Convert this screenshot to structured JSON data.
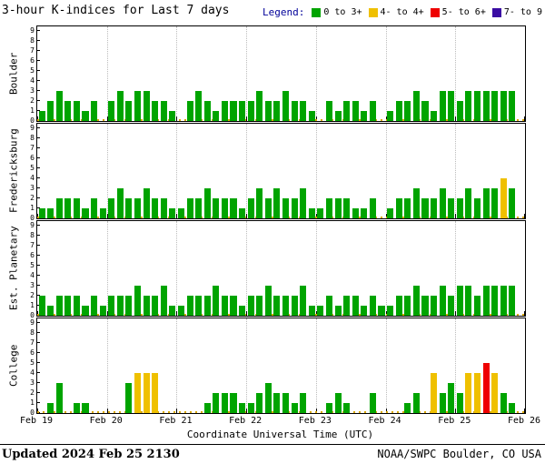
{
  "title": "3-hour K-indices for Last 7 days",
  "legend": {
    "label": "Legend:",
    "items": [
      {
        "label": "0 to 3+",
        "color": "#00a400"
      },
      {
        "label": "4- to 4+",
        "color": "#efc000"
      },
      {
        "label": "5- to 6+",
        "color": "#ee0000"
      },
      {
        "label": "7- to 9",
        "color": "#3a0ca3"
      }
    ]
  },
  "xlabel": "Coordinate Universal Time (UTC)",
  "footer": {
    "updated": "Updated 2024 Feb 25 2130",
    "source": "NOAA/SWPC Boulder, CO USA"
  },
  "chart_data": {
    "type": "bar",
    "x_tick_labels": [
      "Feb 19",
      "Feb 20",
      "Feb 21",
      "Feb 22",
      "Feb 23",
      "Feb 24",
      "Feb 25",
      "Feb 26"
    ],
    "slots_per_day": 8,
    "ylim": [
      0,
      9
    ],
    "y_ticks": [
      0,
      1,
      2,
      3,
      4,
      5,
      6,
      7,
      8,
      9
    ],
    "colors": {
      "green": "#00a400",
      "yellow": "#efc000",
      "red": "#ee0000",
      "purple": "#3a0ca3"
    },
    "color_map": {
      "0-3": "green",
      "4": "yellow",
      "5-6": "red",
      "7-9": "purple"
    },
    "panels": [
      {
        "station": "Boulder",
        "values": [
          1,
          2,
          3,
          2,
          2,
          1,
          2,
          0,
          2,
          3,
          2,
          3,
          3,
          2,
          2,
          1,
          0,
          2,
          3,
          2,
          1,
          2,
          2,
          2,
          2,
          3,
          2,
          2,
          3,
          2,
          2,
          1,
          0,
          2,
          1,
          2,
          2,
          1,
          2,
          0,
          1,
          2,
          2,
          3,
          2,
          1,
          3,
          3,
          2,
          3,
          3,
          3,
          3,
          3,
          3
        ]
      },
      {
        "station": "Fredericksburg",
        "values": [
          1,
          1,
          2,
          2,
          2,
          1,
          2,
          1,
          2,
          3,
          2,
          2,
          3,
          2,
          2,
          1,
          1,
          2,
          2,
          3,
          2,
          2,
          2,
          1,
          2,
          3,
          2,
          3,
          2,
          2,
          3,
          1,
          1,
          2,
          2,
          2,
          1,
          1,
          2,
          0,
          1,
          2,
          2,
          3,
          2,
          2,
          3,
          2,
          2,
          3,
          2,
          3,
          3,
          4,
          3
        ]
      },
      {
        "station": "Est. Planetary",
        "values": [
          2,
          1,
          2,
          2,
          2,
          1,
          2,
          1,
          2,
          2,
          2,
          3,
          2,
          2,
          3,
          1,
          1,
          2,
          2,
          2,
          3,
          2,
          2,
          1,
          2,
          2,
          3,
          2,
          2,
          2,
          3,
          1,
          1,
          2,
          1,
          2,
          2,
          1,
          2,
          1,
          1,
          2,
          2,
          3,
          2,
          2,
          3,
          2,
          3,
          3,
          2,
          3,
          3,
          3,
          3
        ]
      },
      {
        "station": "College",
        "values": [
          0,
          1,
          3,
          0,
          1,
          1,
          0,
          0,
          0,
          0,
          3,
          4,
          4,
          4,
          0,
          0,
          0,
          0,
          0,
          1,
          2,
          2,
          2,
          1,
          1,
          2,
          3,
          2,
          2,
          1,
          2,
          0,
          0,
          1,
          2,
          1,
          0,
          0,
          2,
          0,
          0,
          0,
          1,
          2,
          0,
          4,
          2,
          3,
          2,
          4,
          4,
          5,
          4,
          2,
          1
        ]
      }
    ]
  }
}
